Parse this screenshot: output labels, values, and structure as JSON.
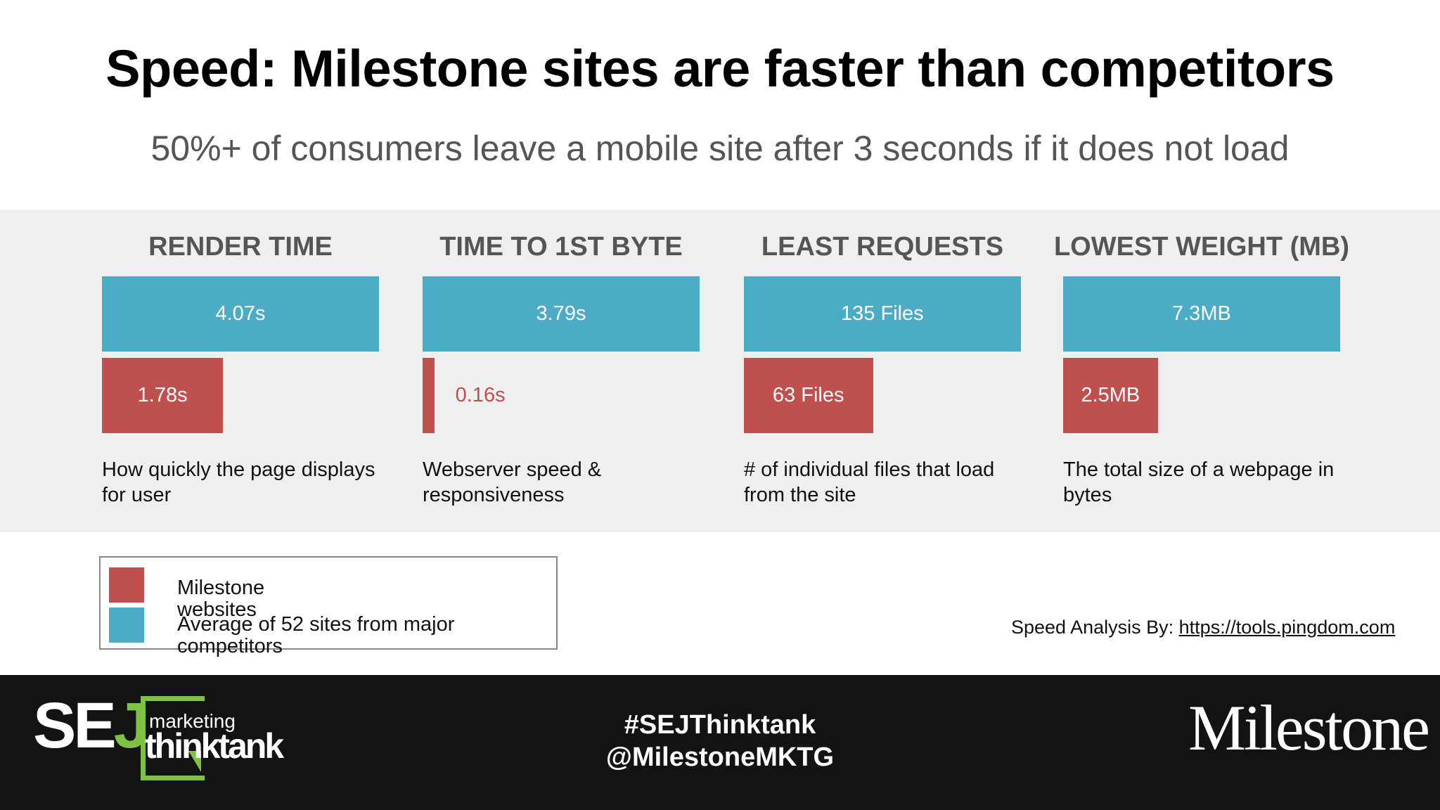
{
  "title": "Speed: Milestone sites are faster than competitors",
  "subtitle": "50%+ of consumers leave a mobile site after 3 seconds if it does not load",
  "legend": [
    {
      "name": "Milestone websites",
      "color": "#c0504d"
    },
    {
      "name": "Average of 52 sites from major competitors",
      "color": "#4bacc6"
    }
  ],
  "chart_data": [
    {
      "type": "bar",
      "title": "RENDER TIME",
      "description": "How quickly the page displays for user",
      "series": [
        {
          "values": [
            1.78
          ],
          "value_labels": [
            "1.78s"
          ]
        },
        {
          "values": [
            4.07
          ],
          "value_labels": [
            "4.07s"
          ]
        }
      ]
    },
    {
      "type": "bar",
      "title": "TIME TO 1ST BYTE",
      "description": "Webserver speed & responsiveness",
      "series": [
        {
          "values": [
            0.16
          ],
          "value_labels": [
            "0.16s"
          ]
        },
        {
          "values": [
            3.79
          ],
          "value_labels": [
            "3.79s"
          ]
        }
      ]
    },
    {
      "type": "bar",
      "title": "LEAST REQUESTS",
      "description": "# of individual files that load from the site",
      "series": [
        {
          "values": [
            63
          ],
          "value_labels": [
            "63 Files"
          ]
        },
        {
          "values": [
            135
          ],
          "value_labels": [
            "135 Files"
          ]
        }
      ]
    },
    {
      "type": "bar",
      "title": "LOWEST WEIGHT (MB)",
      "description": "The total size of a webpage in bytes",
      "series": [
        {
          "values": [
            2.5
          ],
          "value_labels": [
            "2.5MB"
          ]
        },
        {
          "values": [
            7.3
          ],
          "value_labels": [
            "7.3MB"
          ]
        }
      ]
    }
  ],
  "source": {
    "label": "Speed Analysis By:",
    "link": "https://tools.pingdom.com"
  },
  "footer": {
    "hashtag": "#SEJThinktank",
    "handle": "@MilestoneMKTG",
    "logo_left": {
      "letters": "SE",
      "accent": "J",
      "line1": "marketing",
      "line2": "thinktank"
    },
    "logo_right": "Milestone"
  }
}
